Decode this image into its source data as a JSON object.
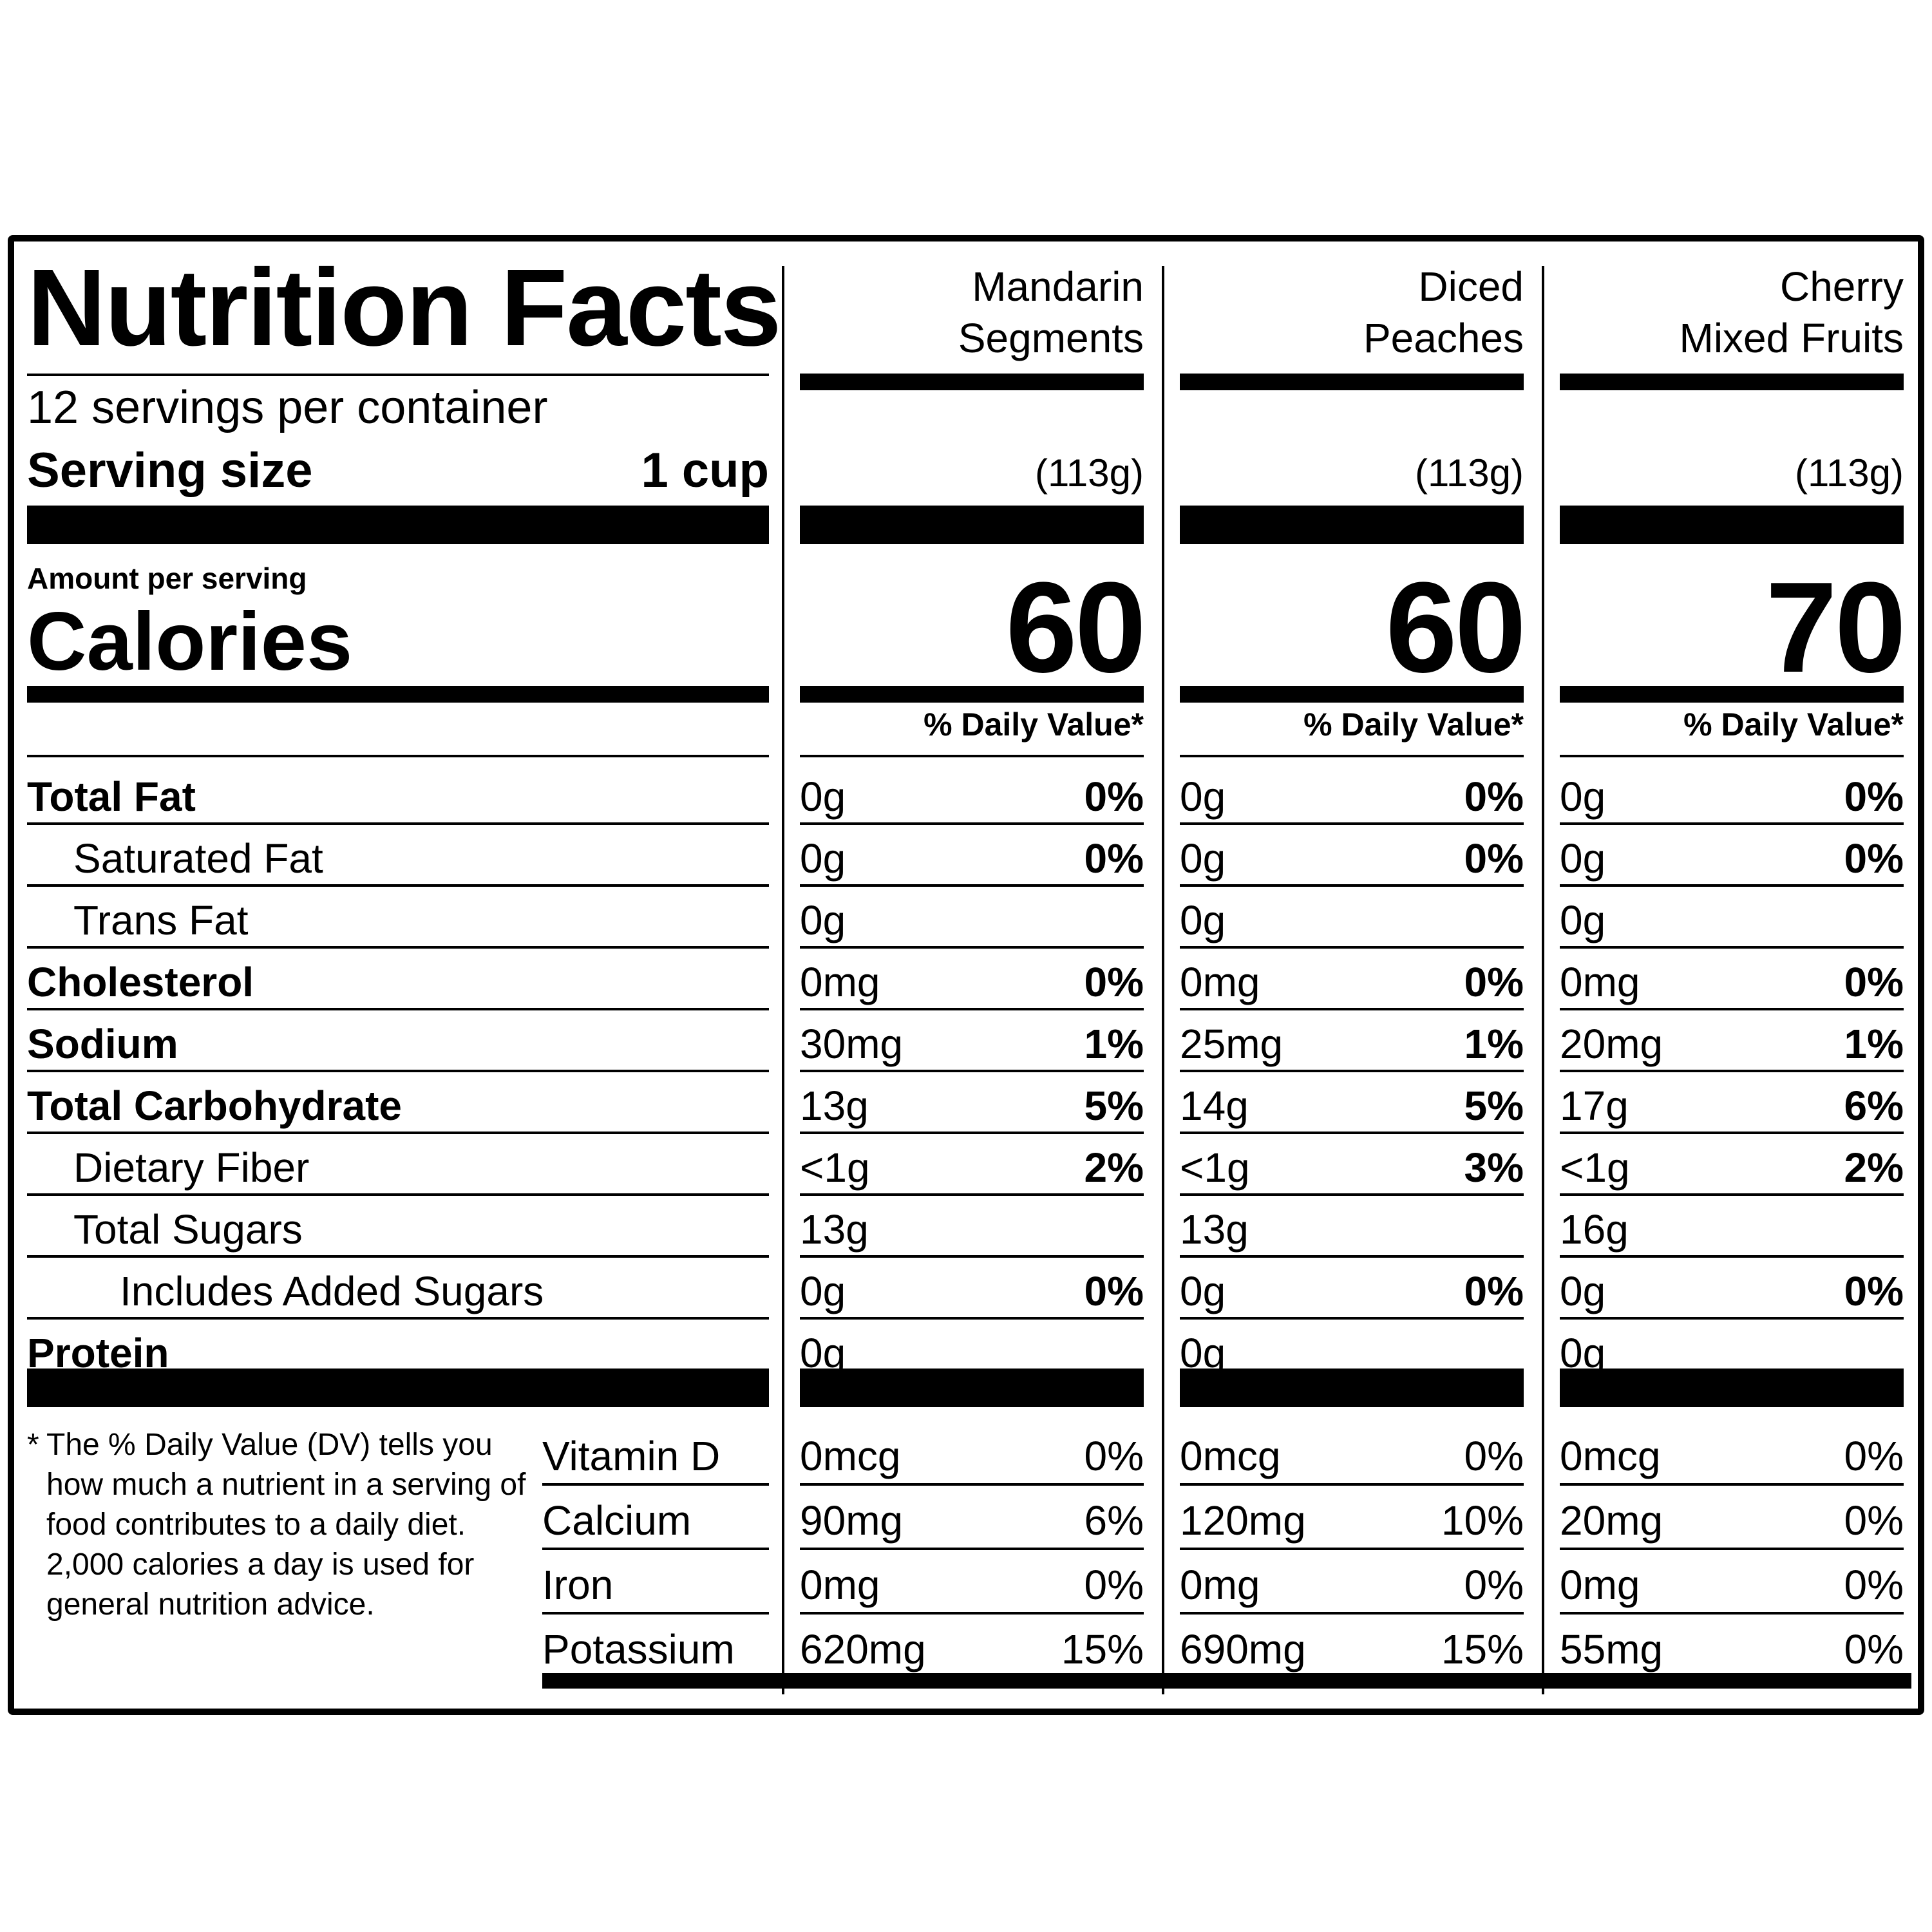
{
  "label": {
    "title": "Nutrition Facts",
    "servings_per_container": "12 servings per container",
    "serving_size_label": "Serving size",
    "serving_size_value": "1 cup",
    "amount_per_serving": "Amount per serving",
    "calories_label": "Calories",
    "daily_value_header": "% Daily Value*",
    "footnote_marker": "*",
    "footnote": "The % Daily Value (DV) tells you how much a nutrient in a serving of food contributes to a daily diet. 2,000 calories a day is used for general nutrition advice."
  },
  "nutrient_labels": [
    "Total Fat",
    "Saturated Fat",
    "Trans Fat",
    "Cholesterol",
    "Sodium",
    "Total Carbohydrate",
    "Dietary Fiber",
    "Total Sugars",
    "Includes Added Sugars",
    "Protein"
  ],
  "vitamin_labels": [
    "Vitamin D",
    "Calcium",
    "Iron",
    "Potassium"
  ],
  "products": [
    {
      "name_line1": "Mandarin",
      "name_line2": "Segments",
      "serving_grams": "(113g)",
      "calories": "60",
      "nutrients": [
        {
          "amount": "0g",
          "dv": "0%"
        },
        {
          "amount": "0g",
          "dv": "0%"
        },
        {
          "amount": "0g",
          "dv": ""
        },
        {
          "amount": "0mg",
          "dv": "0%"
        },
        {
          "amount": "30mg",
          "dv": "1%"
        },
        {
          "amount": "13g",
          "dv": "5%"
        },
        {
          "amount": "<1g",
          "dv": "2%"
        },
        {
          "amount": "13g",
          "dv": ""
        },
        {
          "amount": "0g",
          "dv": "0%"
        },
        {
          "amount": "0g",
          "dv": ""
        }
      ],
      "vitamins": [
        {
          "amount": "0mcg",
          "dv": "0%"
        },
        {
          "amount": "90mg",
          "dv": "6%"
        },
        {
          "amount": "0mg",
          "dv": "0%"
        },
        {
          "amount": "620mg",
          "dv": "15%"
        }
      ]
    },
    {
      "name_line1": "Diced",
      "name_line2": "Peaches",
      "serving_grams": "(113g)",
      "calories": "60",
      "nutrients": [
        {
          "amount": "0g",
          "dv": "0%"
        },
        {
          "amount": "0g",
          "dv": "0%"
        },
        {
          "amount": "0g",
          "dv": ""
        },
        {
          "amount": "0mg",
          "dv": "0%"
        },
        {
          "amount": "25mg",
          "dv": "1%"
        },
        {
          "amount": "14g",
          "dv": "5%"
        },
        {
          "amount": "<1g",
          "dv": "3%"
        },
        {
          "amount": "13g",
          "dv": ""
        },
        {
          "amount": "0g",
          "dv": "0%"
        },
        {
          "amount": "0g",
          "dv": ""
        }
      ],
      "vitamins": [
        {
          "amount": "0mcg",
          "dv": "0%"
        },
        {
          "amount": "120mg",
          "dv": "10%"
        },
        {
          "amount": "0mg",
          "dv": "0%"
        },
        {
          "amount": "690mg",
          "dv": "15%"
        }
      ]
    },
    {
      "name_line1": "Cherry",
      "name_line2": "Mixed Fruits",
      "serving_grams": "(113g)",
      "calories": "70",
      "nutrients": [
        {
          "amount": "0g",
          "dv": "0%"
        },
        {
          "amount": "0g",
          "dv": "0%"
        },
        {
          "amount": "0g",
          "dv": ""
        },
        {
          "amount": "0mg",
          "dv": "0%"
        },
        {
          "amount": "20mg",
          "dv": "1%"
        },
        {
          "amount": "17g",
          "dv": "6%"
        },
        {
          "amount": "<1g",
          "dv": "2%"
        },
        {
          "amount": "16g",
          "dv": ""
        },
        {
          "amount": "0g",
          "dv": "0%"
        },
        {
          "amount": "0g",
          "dv": ""
        }
      ],
      "vitamins": [
        {
          "amount": "0mcg",
          "dv": "0%"
        },
        {
          "amount": "20mg",
          "dv": "0%"
        },
        {
          "amount": "0mg",
          "dv": "0%"
        },
        {
          "amount": "55mg",
          "dv": "0%"
        }
      ]
    }
  ]
}
